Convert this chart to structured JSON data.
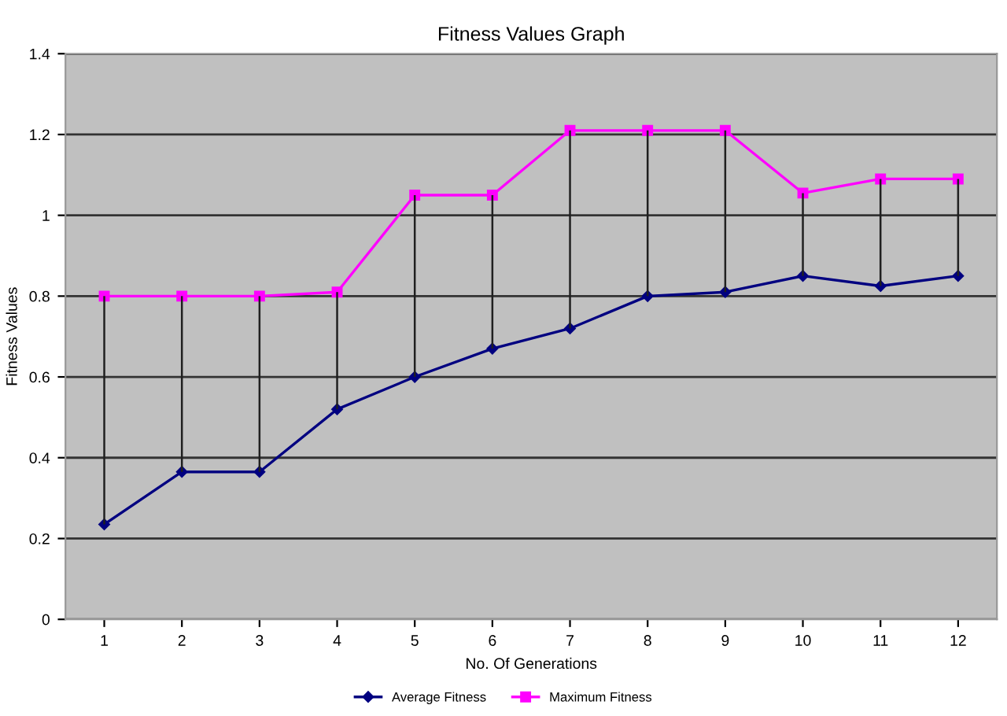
{
  "chart_data": {
    "type": "line",
    "title": "Fitness Values Graph",
    "xlabel": "No. Of Generations",
    "ylabel": "Fitness Values",
    "categories": [
      "1",
      "2",
      "3",
      "4",
      "5",
      "6",
      "7",
      "8",
      "9",
      "10",
      "11",
      "12"
    ],
    "series": [
      {
        "name": "Average Fitness",
        "color": "#000080",
        "marker": "diamond",
        "values": [
          0.235,
          0.365,
          0.365,
          0.52,
          0.6,
          0.67,
          0.72,
          0.8,
          0.81,
          0.85,
          0.825,
          0.85
        ],
        "errors": [
          [
            0.235,
            0.8
          ],
          [
            0.365,
            0.8
          ],
          [
            0.365,
            0.8
          ],
          [
            0.52,
            0.81
          ],
          [
            0.6,
            1.05
          ],
          [
            0.67,
            1.05
          ],
          [
            0.72,
            1.21
          ],
          [
            0.8,
            1.21
          ],
          [
            0.81,
            1.21
          ],
          [
            0.85,
            1.055
          ],
          [
            0.825,
            1.09
          ],
          [
            0.85,
            1.09
          ]
        ]
      },
      {
        "name": "Maximum Fitness",
        "color": "#ff00ff",
        "marker": "square",
        "values": [
          0.8,
          0.8,
          0.8,
          0.81,
          1.05,
          1.05,
          1.21,
          1.21,
          1.21,
          1.055,
          1.09,
          1.09
        ]
      }
    ],
    "ylim": [
      0,
      1.4
    ],
    "yticks": [
      0,
      0.2,
      0.4,
      0.6,
      0.8,
      1,
      1.2,
      1.4
    ],
    "grid": "y",
    "legend": "bottom"
  }
}
